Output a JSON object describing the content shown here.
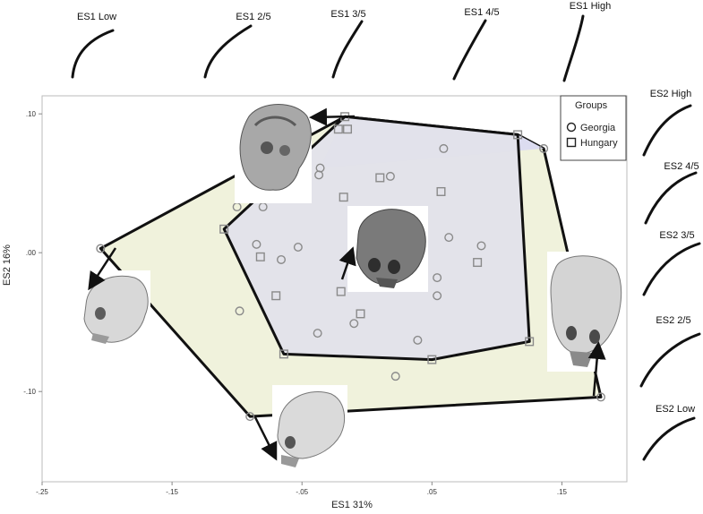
{
  "chart_data": {
    "type": "scatter",
    "xlabel": "ES1 31%",
    "ylabel": "ES2  16%",
    "xlim": [
      -0.25,
      0.2
    ],
    "ylim": [
      -0.165,
      0.113
    ],
    "x_ticks": [
      {
        "value": -0.25,
        "label": "-.25"
      },
      {
        "value": -0.15,
        "label": "-.15"
      },
      {
        "value": -0.05,
        "label": "-.05"
      },
      {
        "value": 0.05,
        "label": ".05"
      },
      {
        "value": 0.15,
        "label": ".15"
      }
    ],
    "y_ticks": [
      {
        "value": 0.1,
        "label": ".10"
      },
      {
        "value": 0.0,
        "label": ".00"
      },
      {
        "value": -0.1,
        "label": "-.10"
      }
    ],
    "grid": false,
    "legend": {
      "title": "Groups",
      "position": "top-right",
      "entries": [
        {
          "marker": "circle",
          "label": "Georgia"
        },
        {
          "marker": "square",
          "label": "Hungary"
        }
      ]
    },
    "series": [
      {
        "name": "Georgia",
        "marker": "circle",
        "hull_color": "#f0f2dc",
        "points": [
          [
            -0.205,
            0.003
          ],
          [
            -0.09,
            -0.118
          ],
          [
            0.18,
            -0.104
          ],
          [
            0.136,
            0.075
          ],
          [
            0.059,
            0.075
          ],
          [
            -0.037,
            0.056
          ],
          [
            -0.036,
            0.061
          ],
          [
            0.018,
            0.055
          ],
          [
            -0.1,
            0.033
          ],
          [
            -0.08,
            0.033
          ],
          [
            -0.085,
            0.006
          ],
          [
            -0.066,
            -0.005
          ],
          [
            -0.053,
            0.004
          ],
          [
            -0.098,
            -0.042
          ],
          [
            0.063,
            0.011
          ],
          [
            0.088,
            0.005
          ],
          [
            0.054,
            -0.018
          ],
          [
            0.054,
            -0.031
          ],
          [
            -0.038,
            -0.058
          ],
          [
            -0.01,
            -0.051
          ],
          [
            0.039,
            -0.063
          ],
          [
            0.022,
            -0.089
          ]
        ]
      },
      {
        "name": "Hungary",
        "marker": "square",
        "hull_color": "#e1e1ea",
        "points": [
          [
            -0.017,
            0.098
          ],
          [
            -0.022,
            0.089
          ],
          [
            -0.015,
            0.089
          ],
          [
            0.116,
            0.085
          ],
          [
            0.01,
            0.054
          ],
          [
            0.057,
            0.044
          ],
          [
            -0.018,
            0.04
          ],
          [
            -0.11,
            0.017
          ],
          [
            -0.082,
            -0.003
          ],
          [
            -0.07,
            -0.031
          ],
          [
            -0.02,
            -0.028
          ],
          [
            0.085,
            -0.007
          ],
          [
            -0.005,
            -0.044
          ],
          [
            -0.064,
            -0.073
          ],
          [
            0.125,
            -0.064
          ],
          [
            0.05,
            -0.077
          ]
        ]
      }
    ],
    "top_hull_color": "#dcdcf0",
    "shape_labels_top": [
      "ES1 Low",
      "ES1 2/5",
      "ES1 3/5",
      "ES1 4/5",
      "ES1 High"
    ],
    "shape_labels_right": [
      "ES2 High",
      "ES2 4/5",
      "ES2 3/5",
      "ES2 2/5",
      "ES2 Low"
    ]
  },
  "colors": {
    "georgia_hull": "#f0f2dc",
    "hungary_hull": "#e1e1ea",
    "top_hull": "#dcdcf0",
    "marker": "#8a8a8a",
    "outline": "#111111",
    "skull_fill": "#cfcfcf",
    "skull_dark": "#6b6b6b"
  }
}
